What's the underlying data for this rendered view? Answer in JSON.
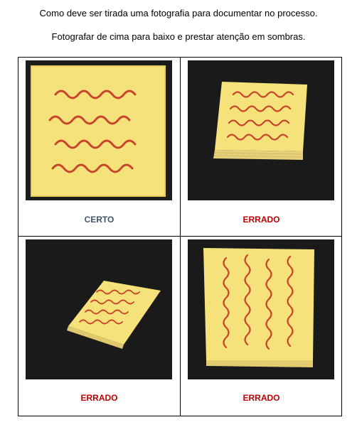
{
  "header": {
    "line1": "Como deve ser tirada uma fotografia para documentar no processo.",
    "line2": "Fotografar de cima para baixo e prestar atenção em sombras."
  },
  "cells": [
    {
      "label": "CERTO",
      "status": "correct",
      "color": "#44546a"
    },
    {
      "label": "ERRADO",
      "status": "wrong",
      "color": "#c00000"
    },
    {
      "label": "ERRADO",
      "status": "wrong",
      "color": "#c00000"
    },
    {
      "label": "ERRADO",
      "status": "wrong",
      "color": "#c00000"
    }
  ],
  "colors": {
    "note_yellow": "#f6e27a",
    "ink_red": "#c8442b",
    "background_dark": "#1a1a1a"
  }
}
